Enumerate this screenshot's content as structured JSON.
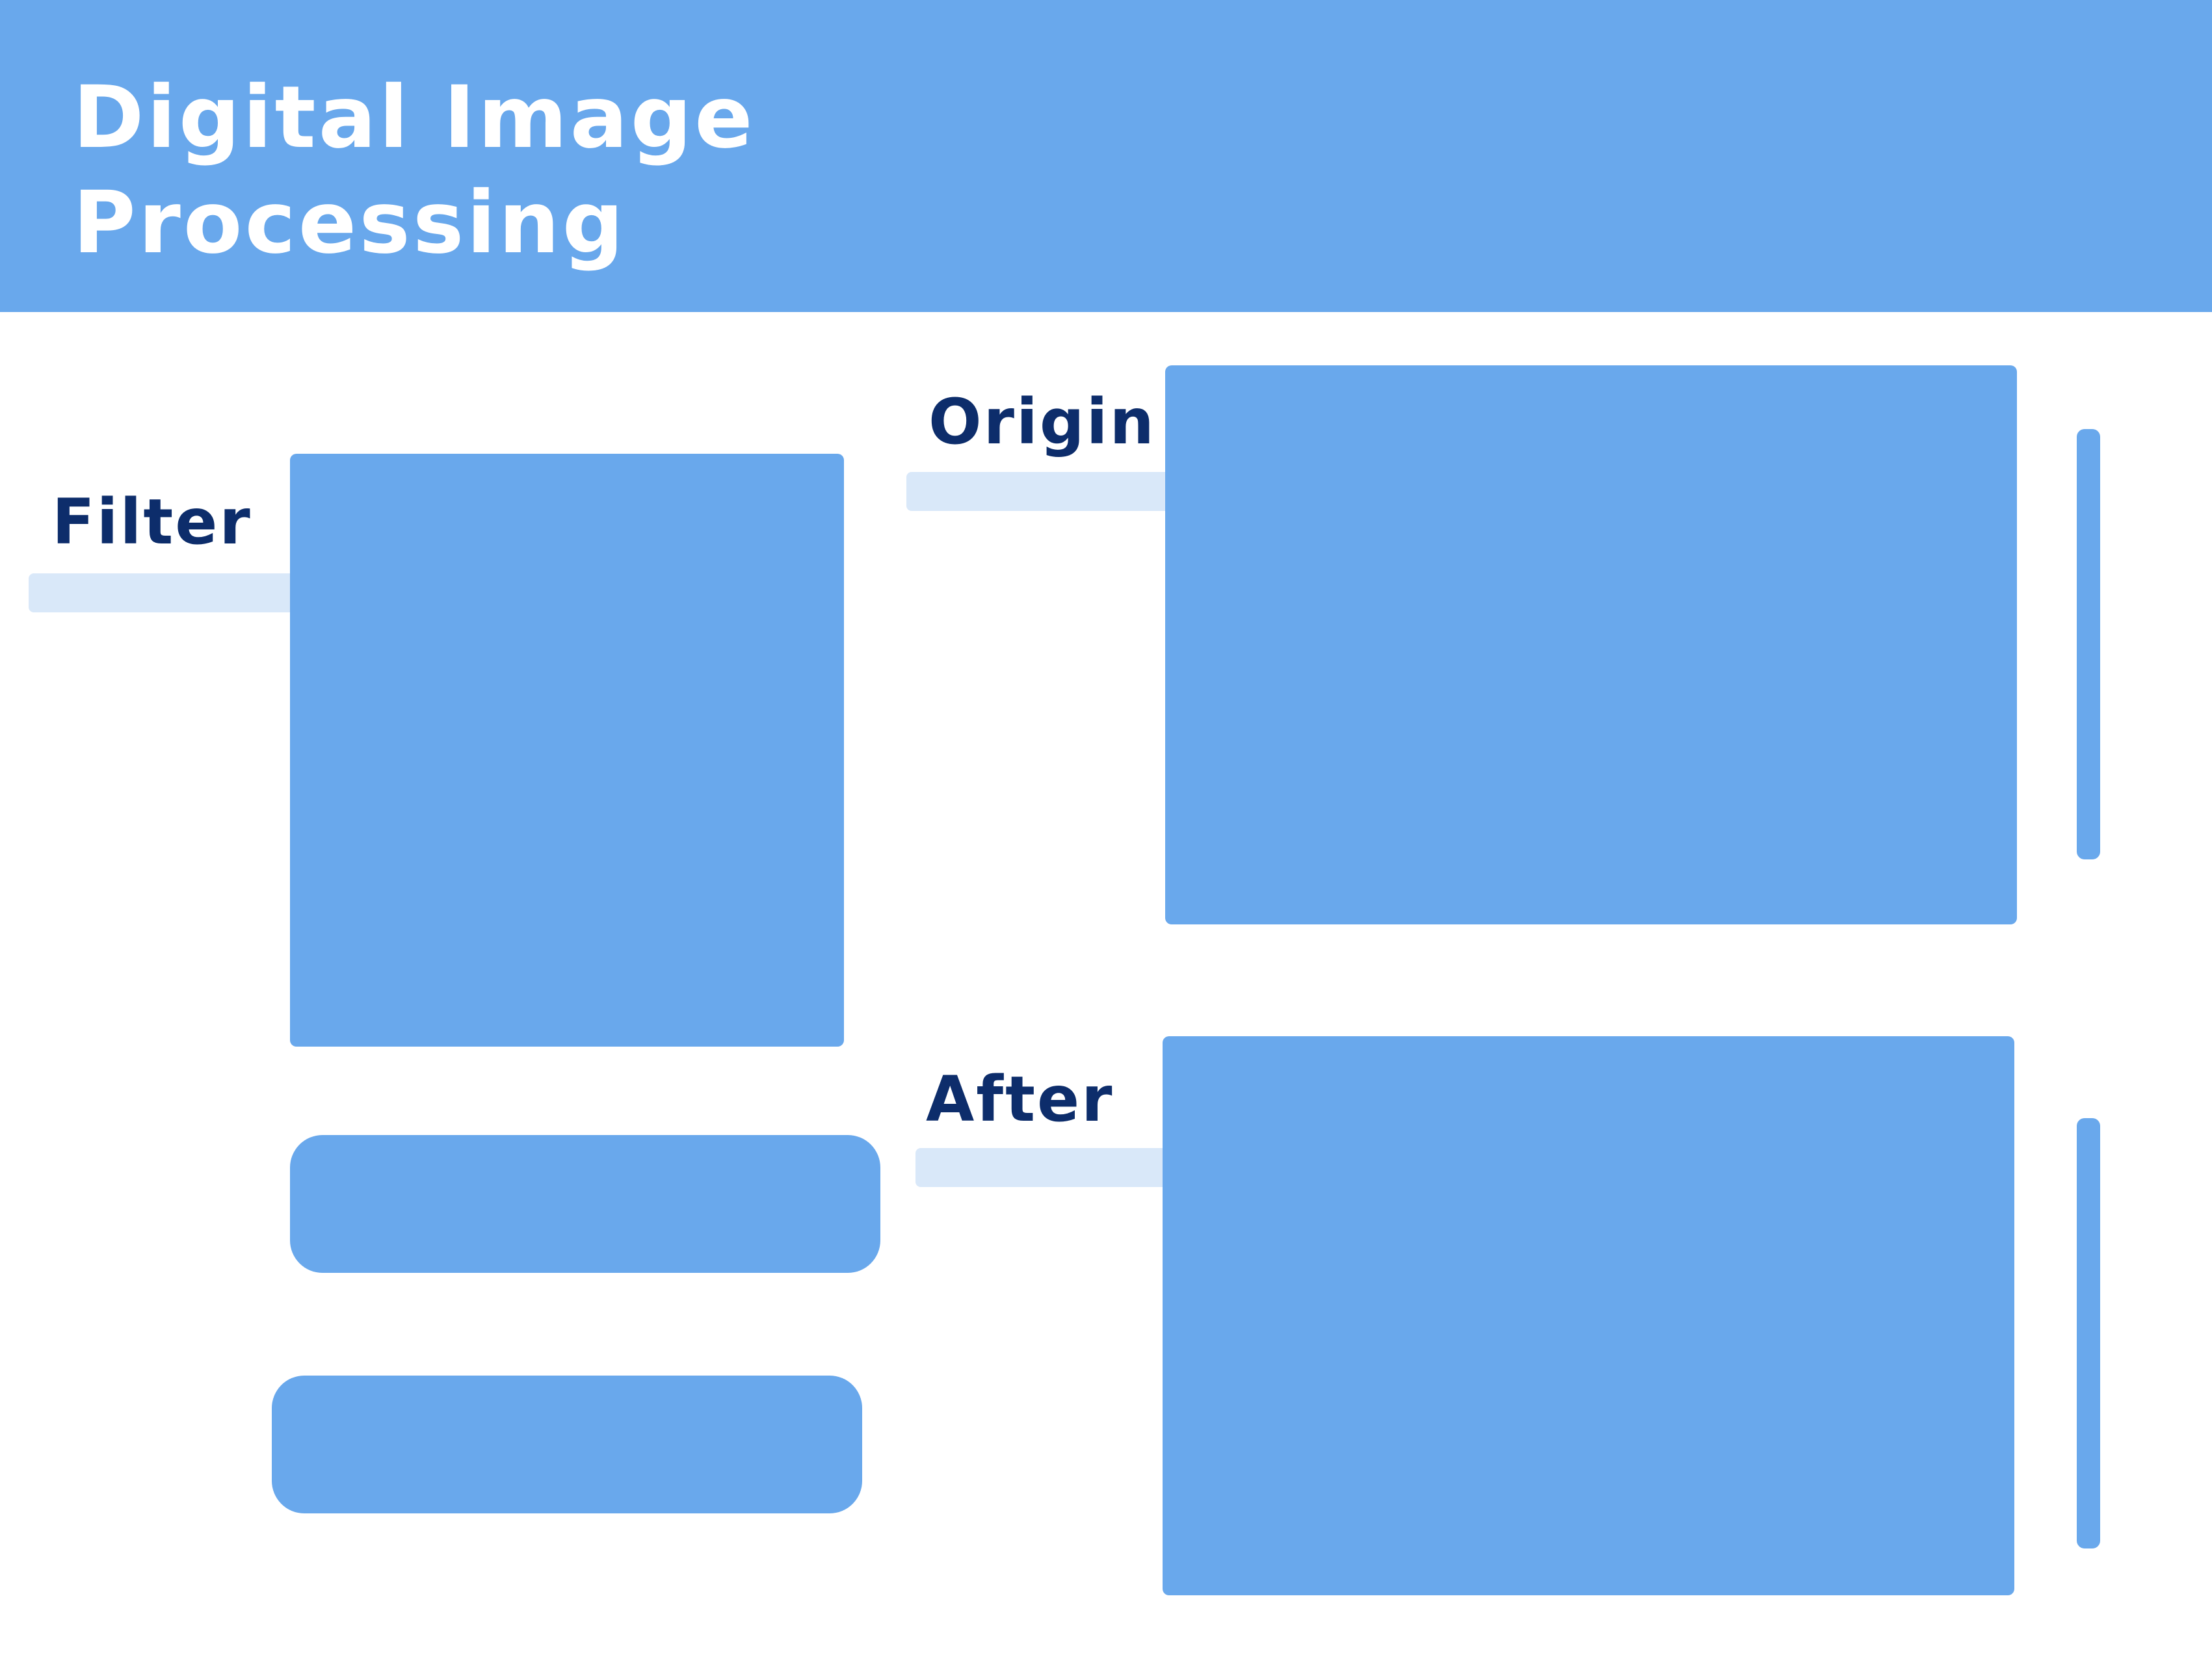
{
  "header": {
    "title_line1": "Digital Image",
    "title_line2": "Processing"
  },
  "filter": {
    "label": "Filter"
  },
  "origin": {
    "label": "Origin"
  },
  "after": {
    "label": "After"
  },
  "colors": {
    "accent": "#69a8ec",
    "label_text": "#0d2d6b",
    "underline": "#d9e8f9",
    "title_text": "#ffffff",
    "background": "#ffffff"
  }
}
